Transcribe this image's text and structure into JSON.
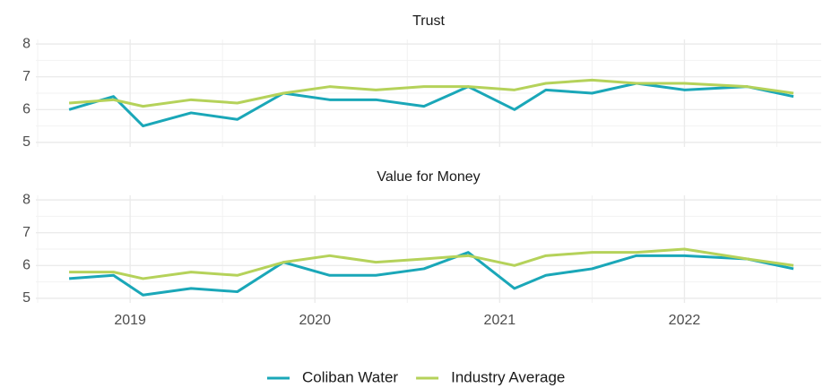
{
  "chart_data": [
    {
      "type": "line",
      "title": "Trust",
      "x": [
        2018.67,
        2018.91,
        2019.07,
        2019.33,
        2019.58,
        2019.83,
        2020.08,
        2020.33,
        2020.59,
        2020.83,
        2021.08,
        2021.25,
        2021.5,
        2021.74,
        2022.0,
        2022.34,
        2022.59
      ],
      "series": [
        {
          "name": "Coliban Water",
          "color": "#1aa7b8",
          "values": [
            6.0,
            6.4,
            5.5,
            5.9,
            5.7,
            6.5,
            6.3,
            6.3,
            6.1,
            6.7,
            6.0,
            6.6,
            6.5,
            6.8,
            6.6,
            6.7,
            6.4
          ]
        },
        {
          "name": "Industry Average",
          "color": "#b5d25a",
          "values": [
            6.2,
            6.3,
            6.1,
            6.3,
            6.2,
            6.5,
            6.7,
            6.6,
            6.7,
            6.7,
            6.6,
            6.8,
            6.9,
            6.8,
            6.8,
            6.7,
            6.5
          ]
        }
      ],
      "xlim": [
        2018.49,
        2022.74
      ],
      "xticks": [
        2019,
        2020,
        2021,
        2022
      ],
      "ylim": [
        4.86,
        8.14
      ],
      "yticks": [
        5,
        6,
        7,
        8
      ],
      "grid": true,
      "legend": "bottom"
    },
    {
      "type": "line",
      "title": "Value for Money",
      "x": [
        2018.67,
        2018.91,
        2019.07,
        2019.33,
        2019.58,
        2019.83,
        2020.08,
        2020.33,
        2020.59,
        2020.83,
        2021.08,
        2021.25,
        2021.5,
        2021.74,
        2022.0,
        2022.34,
        2022.59
      ],
      "series": [
        {
          "color": "#1aa7b8",
          "values": [
            5.6,
            5.7,
            5.1,
            5.3,
            5.2,
            6.1,
            5.7,
            5.7,
            5.9,
            6.4,
            5.3,
            5.7,
            5.9,
            6.3,
            6.3,
            6.2,
            5.9
          ]
        },
        {
          "color": "#b5d25a",
          "values": [
            5.8,
            5.8,
            5.6,
            5.8,
            5.7,
            6.1,
            6.3,
            6.1,
            6.2,
            6.3,
            6.0,
            6.3,
            6.4,
            6.4,
            6.5,
            6.2,
            6.0
          ]
        }
      ],
      "xlim": [
        2018.49,
        2022.74
      ],
      "xticks": [
        2019,
        2020,
        2021,
        2022
      ],
      "ylim": [
        4.86,
        8.14
      ],
      "yticks": [
        5,
        6,
        7,
        8
      ],
      "grid": true
    }
  ]
}
